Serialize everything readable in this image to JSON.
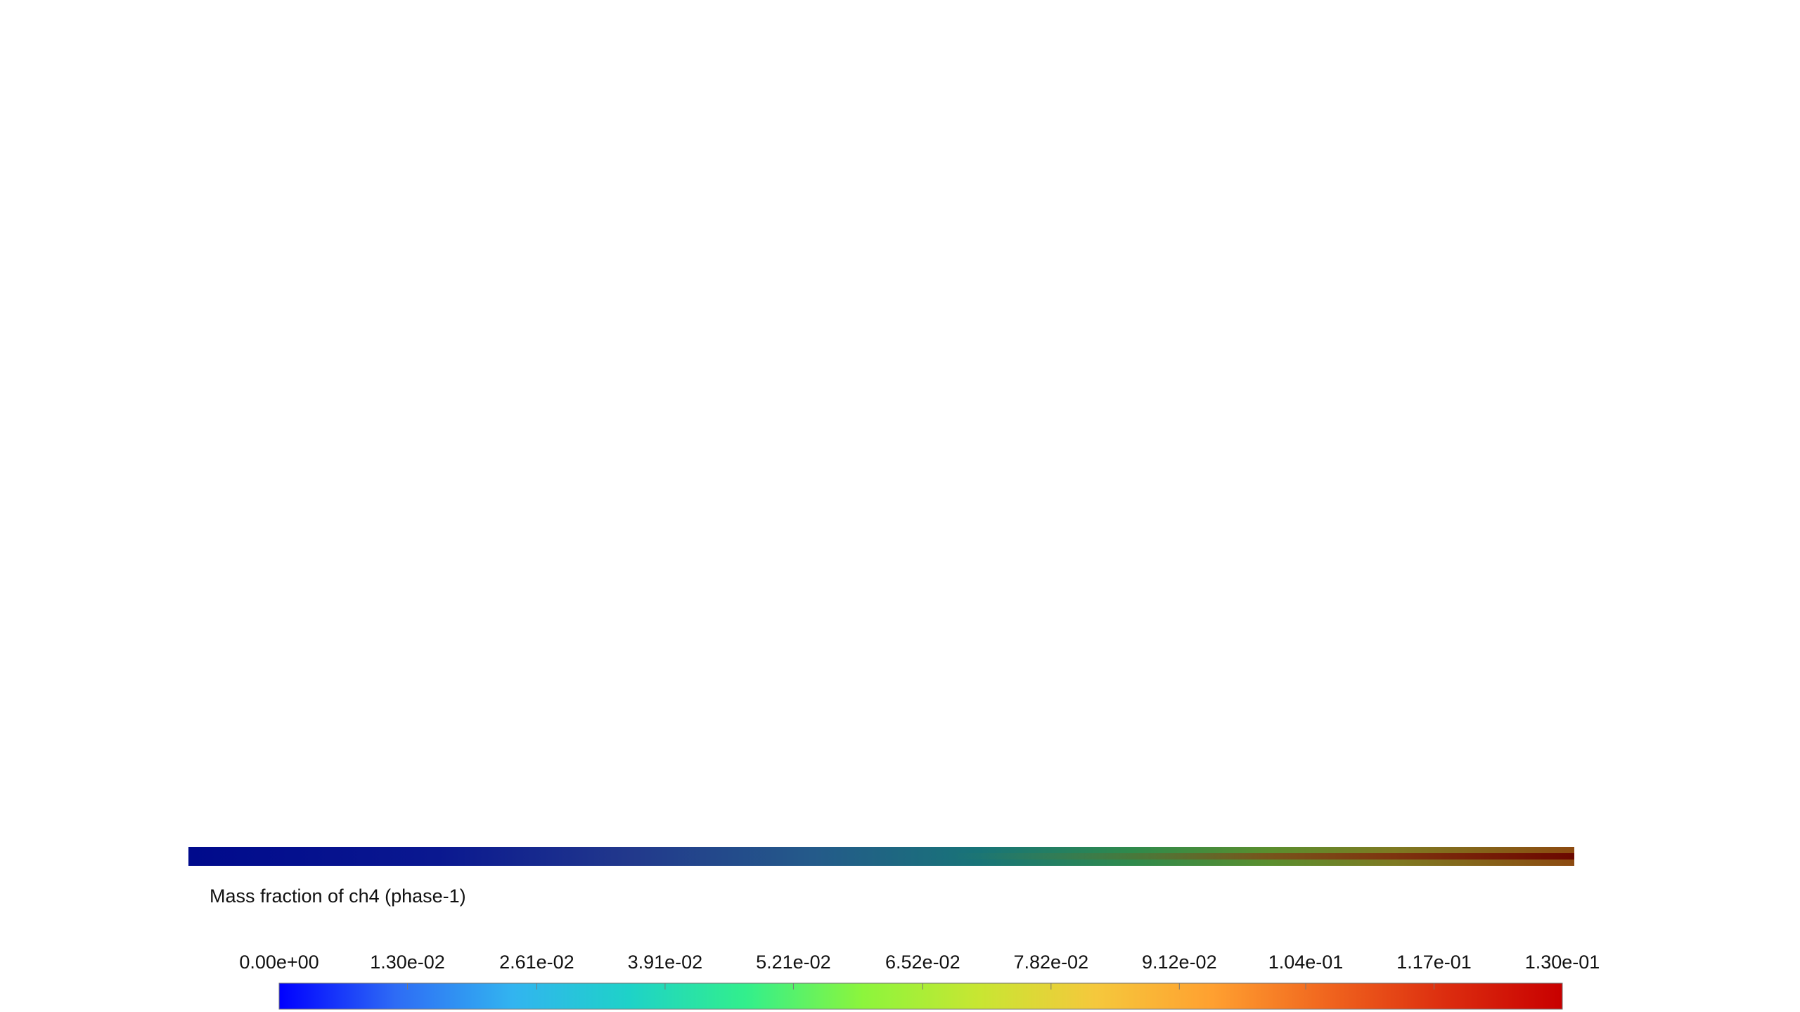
{
  "chart_data": {
    "type": "colorbar",
    "title": "Mass fraction of ch4 (phase-1)",
    "xlim": [
      0,
      0.13
    ],
    "xticks": [
      {
        "value": 0,
        "label": "0.00e+00"
      },
      {
        "value": 0.013,
        "label": "1.30e-02"
      },
      {
        "value": 0.0261,
        "label": "2.61e-02"
      },
      {
        "value": 0.0391,
        "label": "3.91e-02"
      },
      {
        "value": 0.0521,
        "label": "5.21e-02"
      },
      {
        "value": 0.0652,
        "label": "6.52e-02"
      },
      {
        "value": 0.0782,
        "label": "7.82e-02"
      },
      {
        "value": 0.0912,
        "label": "9.12e-02"
      },
      {
        "value": 0.104,
        "label": "1.04e-01"
      },
      {
        "value": 0.117,
        "label": "1.17e-01"
      },
      {
        "value": 0.13,
        "label": "1.30e-01"
      }
    ],
    "colormap": [
      "#0000ff",
      "#2e6cf5",
      "#32b4f0",
      "#1ed2c8",
      "#32ef8c",
      "#8cf53c",
      "#c8e632",
      "#f5c83c",
      "#ffa030",
      "#f0641e",
      "#dc2d0f",
      "#c80000"
    ]
  }
}
